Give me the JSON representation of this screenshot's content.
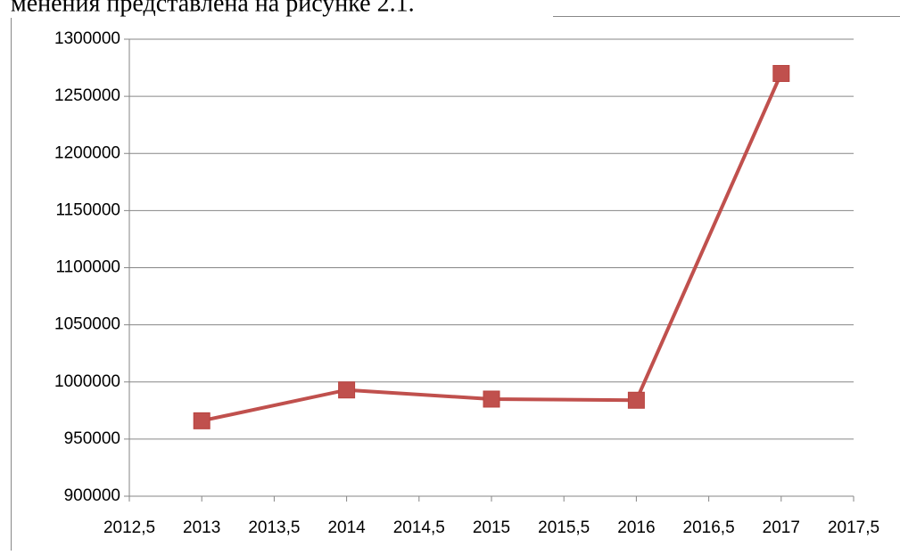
{
  "annotation": "менения представлена на рисунке 2.1.",
  "chart_data": {
    "type": "line",
    "series": [
      {
        "color": "#c0504d",
        "x": [
          2013,
          2014,
          2015,
          2016,
          2017
        ],
        "values": [
          966000,
          993000,
          985000,
          984000,
          1270000
        ]
      }
    ],
    "xlim": [
      2012.5,
      2017.5
    ],
    "xticks": [
      {
        "value": 2012.5,
        "label": "2012,5"
      },
      2013,
      {
        "value": 2013.5,
        "label": "2013,5"
      },
      2014,
      {
        "value": 2014.5,
        "label": "2014,5"
      },
      2015,
      {
        "value": 2015.5,
        "label": "2015,5"
      },
      2016,
      {
        "value": 2016.5,
        "label": "2016,5"
      },
      2017,
      {
        "value": 2017.5,
        "label": "2017,5"
      }
    ],
    "ylim": [
      900000,
      1300000
    ],
    "yticks": [
      900000,
      950000,
      1000000,
      1050000,
      1100000,
      1150000,
      1200000,
      1250000,
      1300000
    ],
    "grid": true
  }
}
